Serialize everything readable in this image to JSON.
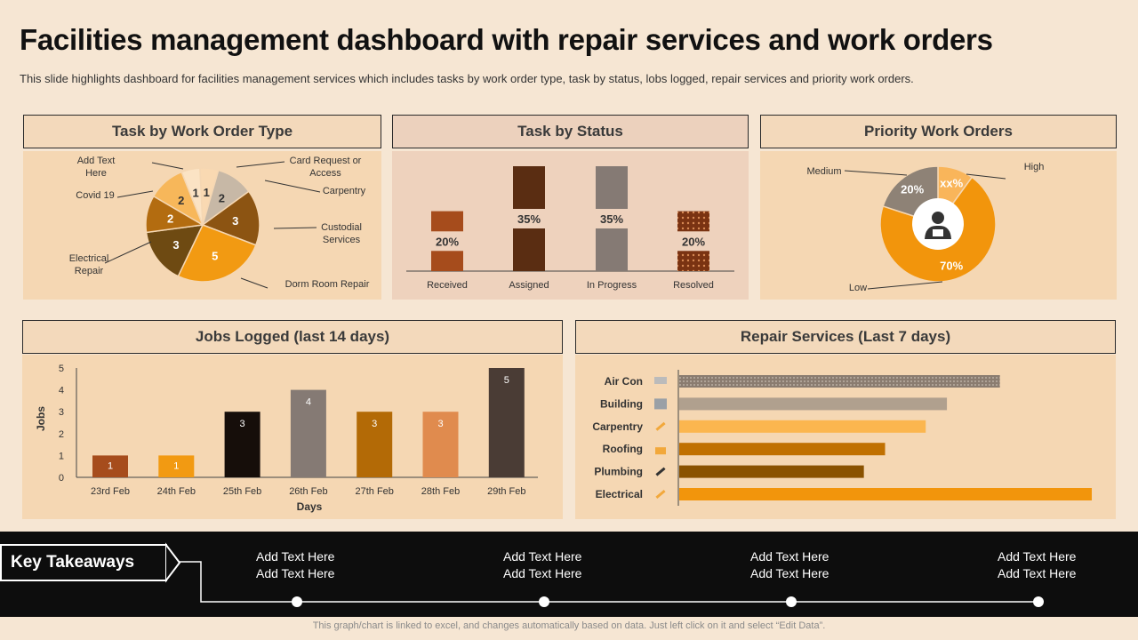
{
  "header": {
    "title": "Facilities management dashboard with repair services and work orders",
    "subtitle": "This slide highlights dashboard for facilities management services which includes tasks by work order type, task by status, lobs logged, repair services and priority work orders."
  },
  "panels": {
    "work_order_type": "Task by Work Order Type",
    "status": "Task by Status",
    "priority": "Priority Work Orders",
    "jobs": "Jobs Logged (last 14 days)",
    "repair": "Repair Services (Last 7 days)"
  },
  "chart_data": [
    {
      "id": "work_order_type",
      "type": "pie",
      "title": "Task by Work Order Type",
      "categories": [
        "Add Text Here",
        "Card Request or Access",
        "Carpentry",
        "Custodial Services",
        "Dorm Room Repair",
        "Electrical Repair",
        "Covid 19"
      ],
      "values": [
        1,
        1,
        2,
        3,
        5,
        3,
        2
      ],
      "colors": [
        "#fbe3c4",
        "#f9d9b2",
        "#c7b8a6",
        "#8c5412",
        "#f29a12",
        "#6e4a12",
        "#b36c10"
      ],
      "extra_slice": {
        "label": "Add Text Here",
        "value": 2,
        "color": "#f7b75a"
      }
    },
    {
      "id": "status",
      "type": "bar",
      "title": "Task by Status",
      "categories": [
        "Received",
        "Assigned",
        "In Progress",
        "Resolved"
      ],
      "values": [
        20,
        35,
        35,
        20
      ],
      "labels": [
        "20%",
        "35%",
        "35%",
        "20%"
      ],
      "colors": [
        "#a64c1c",
        "#5a2d12",
        "#857a74",
        "#7a3312"
      ]
    },
    {
      "id": "priority",
      "type": "pie",
      "title": "Priority Work Orders",
      "categories": [
        "High",
        "Medium",
        "Low"
      ],
      "values": [
        10,
        20,
        70
      ],
      "labels": [
        "xx%",
        "20%",
        "70%"
      ],
      "colors": [
        "#f9b55a",
        "#8e8276",
        "#f2950c"
      ]
    },
    {
      "id": "jobs",
      "type": "bar",
      "title": "Jobs Logged (last 14 days)",
      "xlabel": "Days",
      "ylabel": "Jobs",
      "categories": [
        "23rd Feb",
        "24th Feb",
        "25th Feb",
        "26th Feb",
        "27th Feb",
        "28th Feb",
        "29th Feb"
      ],
      "values": [
        1,
        1,
        3,
        4,
        3,
        3,
        5
      ],
      "ylim": [
        0,
        5
      ],
      "yticks": [
        "0",
        "1",
        "2",
        "3",
        "4",
        "5"
      ],
      "colors": [
        "#a64c1c",
        "#f29a12",
        "#160e0a",
        "#857a74",
        "#b36a06",
        "#e08b4e",
        "#4a3c35"
      ]
    },
    {
      "id": "repair",
      "type": "bar",
      "orientation": "horizontal",
      "title": "Repair Services (Last 7 days)",
      "categories": [
        "Air Con",
        "Building",
        "Carpentry",
        "Roofing",
        "Plumbing",
        "Electrical"
      ],
      "values": [
        363,
        303,
        279,
        233,
        209,
        467
      ],
      "xlim": [
        0,
        470
      ],
      "colors": [
        "#8a7c70",
        "#b0a08e",
        "#fbb64f",
        "#c07000",
        "#8a5200",
        "#f2950c"
      ],
      "icons": [
        "air-con-icon",
        "building-icon",
        "carpentry-icon",
        "roofing-icon",
        "plumbing-icon",
        "electrical-icon"
      ]
    }
  ],
  "takeaways": {
    "label": "Key Takeaways",
    "items": [
      {
        "line1": "Add Text Here",
        "line2": "Add Text Here"
      },
      {
        "line1": "Add Text Here",
        "line2": "Add Text Here"
      },
      {
        "line1": "Add Text Here",
        "line2": "Add Text Here"
      },
      {
        "line1": "Add Text Here",
        "line2": "Add Text Here"
      }
    ]
  },
  "footer": "This graph/chart is linked to excel, and changes automatically based on data. Just left click on it and select “Edit Data”."
}
